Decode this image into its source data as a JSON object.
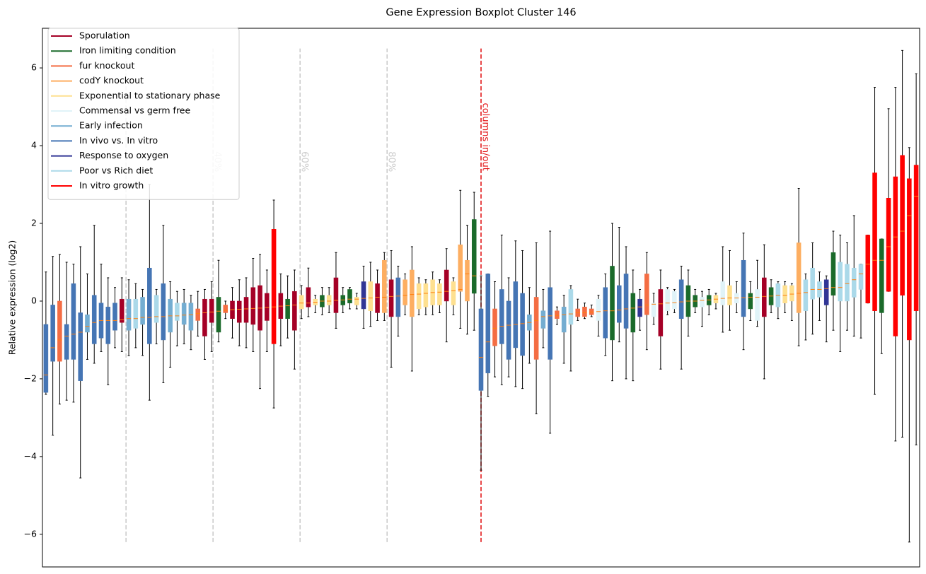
{
  "chart_data": {
    "type": "boxplot",
    "title": "Gene Expression Boxplot Cluster 146",
    "ylabel": "Relative expression (log2)",
    "xlim": [
      0.5,
      127.5
    ],
    "ylim": [
      -6.84,
      7.02
    ],
    "yticks": [
      {
        "value": -6,
        "label": "−6"
      },
      {
        "value": -4,
        "label": "−4"
      },
      {
        "value": -2,
        "label": "−2"
      },
      0,
      2,
      4,
      6
    ],
    "legend": "upper left",
    "median_color": "#ff7f0e",
    "series": [
      {
        "name": "Sporulation",
        "color": "#a50026"
      },
      {
        "name": "Iron limiting condition",
        "color": "#1a6a2a"
      },
      {
        "name": "fur knockout",
        "color": "#f46d43"
      },
      {
        "name": "codY knockout",
        "color": "#fdae61"
      },
      {
        "name": "Exponential to stationary phase",
        "color": "#fee090"
      },
      {
        "name": "Commensal vs germ free",
        "color": "#e0f3f8"
      },
      {
        "name": "Early infection",
        "color": "#74add1"
      },
      {
        "name": "In vivo vs. In vitro",
        "color": "#4575b4"
      },
      {
        "name": "Response to oxygen",
        "color": "#313695"
      },
      {
        "name": "Poor vs Rich diet",
        "color": "#abd9e9"
      },
      {
        "name": "In vitro growth",
        "color": "#ff0000"
      }
    ],
    "vline_range": [
      -6.2,
      6.5
    ],
    "vlines": [
      {
        "x": 12.6,
        "color": "#cccccc"
      },
      {
        "x": 25.2,
        "label": "40%",
        "color": "#cccccc"
      },
      {
        "x": 37.8,
        "label": "60%",
        "color": "#cccccc"
      },
      {
        "x": 50.4,
        "label": "80%",
        "color": "#cccccc"
      },
      {
        "x": 64,
        "label": "columns in/out",
        "color": "#e31a1c"
      }
    ],
    "boxes": {
      "colors": [
        "#4575b4",
        "#4575b4",
        "#f46d43",
        "#4575b4",
        "#4575b4",
        "#4575b4",
        "#74add1",
        "#4575b4",
        "#4575b4",
        "#4575b4",
        "#4575b4",
        "#a50026",
        "#74add1",
        "#abd9e9",
        "#74add1",
        "#4575b4",
        "#abd9e9",
        "#4575b4",
        "#74add1",
        "#abd9e9",
        "#74add1",
        "#74add1",
        "#f46d43",
        "#a50026",
        "#a50026",
        "#1a6a2a",
        "#f46d43",
        "#a50026",
        "#a50026",
        "#a50026",
        "#a50026",
        "#a50026",
        "#a50026",
        "#ff0000",
        "#a50026",
        "#1a6a2a",
        "#a50026",
        "#fee090",
        "#a50026",
        "#fee090",
        "#1a6a2a",
        "#fee090",
        "#a50026",
        "#1a6a2a",
        "#1a6a2a",
        "#fee090",
        "#313695",
        "#fee090",
        "#a50026",
        "#fdae61",
        "#a50026",
        "#4575b4",
        "#fdae61",
        "#fdae61",
        "#fee090",
        "#fee090",
        "#fee090",
        "#fee090",
        "#a50026",
        "#fee090",
        "#fdae61",
        "#fdae61",
        "#1a6a2a",
        "#4575b4",
        "#4575b4",
        "#f46d43",
        "#4575b4",
        "#4575b4",
        "#4575b4",
        "#4575b4",
        "#74add1",
        "#f46d43",
        "#74add1",
        "#4575b4",
        "#f46d43",
        "#74add1",
        "#abd9e9",
        "#f46d43",
        "#f46d43",
        "#f46d43",
        "#e0f3f8",
        "#4575b4",
        "#1a6a2a",
        "#4575b4",
        "#4575b4",
        "#1a6a2a",
        "#313695",
        "#f46d43",
        "#e0f3f8",
        "#a50026",
        "#e0f3f8",
        "#e0f3f8",
        "#4575b4",
        "#1a6a2a",
        "#1a6a2a",
        "#e0f3f8",
        "#1a6a2a",
        "#fee090",
        "#e0f3f8",
        "#fee090",
        "#e0f3f8",
        "#4575b4",
        "#1a6a2a",
        "#e0f3f8",
        "#a50026",
        "#1a6a2a",
        "#abd9e9",
        "#fee090",
        "#fee090",
        "#fdae61",
        "#abd9e9",
        "#abd9e9",
        "#abd9e9",
        "#313695",
        "#1a6a2a",
        "#abd9e9",
        "#abd9e9",
        "#abd9e9",
        "#abd9e9",
        "#ff0000",
        "#ff0000",
        "#1a6a2a",
        "#ff0000",
        "#ff0000",
        "#ff0000",
        "#ff0000",
        "#ff0000"
      ],
      "whislo": [
        -2.4,
        -3.45,
        -2.65,
        -2.55,
        -2.6,
        -4.55,
        -1.5,
        -1.6,
        -1.3,
        -2.15,
        -1.2,
        -1.3,
        -1.4,
        -1.2,
        -1.4,
        -2.55,
        -1.1,
        -2.1,
        -1.7,
        -1.15,
        -1.1,
        -1.25,
        -0.9,
        -1.5,
        -1.3,
        -1.05,
        -0.45,
        -0.95,
        -1.15,
        -1.2,
        -1.3,
        -2.25,
        -1.3,
        -2.75,
        -1.15,
        -0.95,
        -1.75,
        -0.45,
        -0.4,
        -0.3,
        -0.35,
        -0.3,
        -0.7,
        -0.3,
        -0.2,
        -0.2,
        -0.7,
        -0.65,
        -0.5,
        -0.5,
        -1.7,
        -0.9,
        -0.35,
        -1.8,
        -0.35,
        -0.35,
        -0.35,
        -0.3,
        -1.05,
        -0.35,
        -0.7,
        -0.85,
        -0.75,
        -4.35,
        -2.45,
        -1.95,
        -2.15,
        -1.95,
        -2.2,
        -2.25,
        -1.6,
        -2.9,
        -1.2,
        -3.4,
        -0.6,
        -1.6,
        -1.8,
        -0.5,
        -0.45,
        -0.4,
        -0.9,
        -1.4,
        -2.05,
        -1.05,
        -2.0,
        -2.05,
        -0.75,
        -1.25,
        -0.6,
        -1.75,
        -0.35,
        -0.3,
        -1.75,
        -0.9,
        -0.3,
        -0.65,
        -0.35,
        -0.2,
        -0.8,
        -0.75,
        -0.3,
        -1.25,
        -0.5,
        -0.65,
        -2.0,
        -0.3,
        -0.45,
        -0.3,
        -0.5,
        -1.15,
        -1.0,
        -0.85,
        -0.5,
        -1.05,
        -0.75,
        -1.3,
        -0.75,
        -0.9,
        -0.95,
        -0.05,
        -2.4,
        -1.35,
        0.25,
        -3.6,
        -3.5,
        -6.2,
        -3.7
      ],
      "q1": [
        -2.35,
        -1.55,
        -1.55,
        -1.5,
        -1.5,
        -2.05,
        -0.8,
        -1.1,
        -0.95,
        -1.1,
        -0.75,
        -0.55,
        -0.75,
        -0.7,
        -0.6,
        -1.1,
        -0.55,
        -1.0,
        -0.8,
        -0.5,
        -0.6,
        -0.75,
        -0.5,
        -0.9,
        -0.55,
        -0.8,
        -0.3,
        -0.45,
        -0.55,
        -0.55,
        -0.6,
        -0.75,
        -0.5,
        -1.1,
        -0.45,
        -0.45,
        -0.75,
        -0.2,
        -0.15,
        -0.1,
        -0.15,
        -0.1,
        -0.3,
        -0.1,
        -0.05,
        -0.1,
        -0.2,
        -0.25,
        -0.3,
        -0.3,
        -0.4,
        -0.4,
        -0.1,
        -0.4,
        -0.2,
        -0.15,
        -0.1,
        -0.1,
        0.0,
        -0.1,
        0.25,
        0.0,
        0.2,
        -2.3,
        -1.85,
        -1.15,
        -1.1,
        -1.5,
        -1.2,
        -1.4,
        -0.75,
        -1.5,
        -0.7,
        -1.5,
        -0.45,
        -0.8,
        -0.6,
        -0.4,
        -0.4,
        -0.35,
        -0.5,
        -0.95,
        -1.0,
        -0.55,
        -0.7,
        -0.8,
        -0.4,
        -0.35,
        -0.4,
        -0.9,
        -0.25,
        -0.2,
        -0.45,
        -0.4,
        -0.15,
        -0.15,
        -0.1,
        -0.05,
        -0.1,
        -0.1,
        -0.05,
        -0.4,
        -0.2,
        -0.5,
        -0.4,
        -0.1,
        -0.15,
        -0.05,
        0.0,
        -0.3,
        -0.25,
        0.05,
        0.1,
        -0.1,
        0.15,
        0.0,
        0.0,
        0.1,
        0.3,
        -0.05,
        -0.25,
        -0.3,
        0.25,
        -0.9,
        0.15,
        -1.0,
        -0.25
      ],
      "med": [
        -1.9,
        -1.2,
        -1.0,
        -0.9,
        -0.85,
        -0.8,
        -0.65,
        -0.55,
        -0.5,
        -0.5,
        -0.5,
        -0.48,
        -0.45,
        -0.45,
        -0.42,
        -0.42,
        -0.4,
        -0.4,
        -0.38,
        -0.38,
        -0.36,
        -0.35,
        -0.32,
        -0.3,
        -0.28,
        -0.26,
        -0.24,
        -0.22,
        -0.21,
        -0.2,
        -0.19,
        -0.18,
        -0.16,
        -0.15,
        -0.13,
        -0.12,
        -0.1,
        -0.05,
        -0.05,
        -0.03,
        0.0,
        0.0,
        0.02,
        0.03,
        0.05,
        0.05,
        0.07,
        0.08,
        0.1,
        0.1,
        0.12,
        0.13,
        0.15,
        0.17,
        0.18,
        0.2,
        0.22,
        0.23,
        0.25,
        0.27,
        0.3,
        0.7,
        0.65,
        -1.45,
        -1.05,
        -0.7,
        -0.65,
        -0.62,
        -0.6,
        -0.58,
        -0.55,
        -0.5,
        -0.4,
        -0.38,
        -0.37,
        -0.35,
        -0.33,
        -0.3,
        -0.3,
        -0.28,
        -0.27,
        -0.25,
        -0.25,
        -0.23,
        -0.2,
        -0.18,
        -0.15,
        -0.1,
        -0.08,
        -0.07,
        -0.05,
        -0.04,
        -0.02,
        0.0,
        0.0,
        0.02,
        0.03,
        0.05,
        0.07,
        0.08,
        0.08,
        0.09,
        0.1,
        0.1,
        0.12,
        0.13,
        0.15,
        0.15,
        0.18,
        0.2,
        0.22,
        0.3,
        0.3,
        0.32,
        0.35,
        0.35,
        0.45,
        0.55,
        0.7,
        0.95,
        1.05,
        1.05,
        1.4,
        1.65,
        1.8,
        2.2,
        2.7
      ],
      "q3": [
        -0.6,
        -0.1,
        0.0,
        -0.6,
        0.45,
        -0.3,
        -0.35,
        0.15,
        -0.05,
        -0.15,
        -0.05,
        0.05,
        0.05,
        0.05,
        0.1,
        0.85,
        0.15,
        0.45,
        0.05,
        -0.05,
        -0.05,
        -0.05,
        -0.2,
        0.05,
        0.05,
        0.1,
        -0.1,
        0.0,
        0.0,
        0.1,
        0.35,
        0.4,
        0.2,
        1.85,
        0.2,
        0.05,
        0.25,
        0.15,
        0.35,
        0.05,
        0.15,
        0.15,
        0.6,
        0.15,
        0.3,
        0.1,
        0.5,
        0.5,
        0.45,
        1.05,
        0.55,
        0.6,
        0.55,
        0.8,
        0.45,
        0.45,
        0.55,
        0.45,
        0.8,
        0.5,
        1.45,
        1.05,
        2.1,
        -0.2,
        0.7,
        -0.2,
        0.3,
        0.0,
        0.5,
        0.2,
        -0.35,
        0.1,
        -0.25,
        0.35,
        -0.25,
        -0.15,
        0.3,
        -0.2,
        -0.15,
        -0.2,
        0.05,
        0.35,
        0.9,
        0.4,
        0.7,
        0.2,
        0.05,
        0.7,
        -0.05,
        0.3,
        0.3,
        0.25,
        0.55,
        0.4,
        0.15,
        0.1,
        0.15,
        0.15,
        0.5,
        0.4,
        0.2,
        1.05,
        0.2,
        0.3,
        0.6,
        0.35,
        0.45,
        0.4,
        0.4,
        1.5,
        0.55,
        0.85,
        0.5,
        0.55,
        1.25,
        1.0,
        0.95,
        0.85,
        0.95,
        1.7,
        3.3,
        1.6,
        2.65,
        3.2,
        3.75,
        3.15,
        3.5
      ],
      "whishi": [
        0.75,
        1.15,
        1.2,
        1.0,
        0.95,
        1.4,
        0.7,
        1.95,
        0.95,
        0.6,
        0.35,
        0.6,
        0.55,
        0.45,
        0.3,
        3.0,
        0.3,
        1.95,
        0.5,
        0.25,
        0.3,
        0.15,
        0.25,
        0.3,
        0.5,
        1.05,
        0.0,
        0.35,
        0.55,
        0.6,
        1.1,
        1.2,
        0.8,
        2.6,
        0.7,
        0.65,
        0.8,
        0.4,
        0.85,
        0.15,
        0.35,
        0.35,
        1.25,
        0.35,
        0.35,
        0.2,
        0.9,
        1.0,
        0.8,
        1.25,
        1.3,
        0.9,
        0.7,
        1.4,
        0.6,
        0.55,
        0.75,
        0.55,
        1.35,
        0.6,
        2.85,
        1.95,
        2.8,
        0.65,
        0.7,
        0.5,
        1.7,
        0.6,
        1.55,
        1.3,
        0.35,
        1.5,
        0.3,
        1.8,
        -0.15,
        0.15,
        0.4,
        0.05,
        -0.05,
        -0.1,
        0.15,
        0.7,
        2.0,
        1.9,
        1.4,
        0.8,
        0.3,
        1.25,
        0.2,
        0.8,
        0.35,
        0.3,
        0.9,
        0.8,
        0.3,
        0.25,
        0.3,
        0.2,
        1.4,
        1.3,
        0.5,
        1.75,
        0.5,
        1.05,
        1.45,
        0.55,
        0.5,
        0.5,
        0.45,
        2.9,
        0.7,
        1.5,
        0.75,
        0.65,
        1.8,
        1.7,
        1.5,
        2.2,
        0.95,
        1.7,
        5.5,
        1.6,
        4.95,
        5.5,
        6.45,
        3.95,
        5.85
      ]
    }
  }
}
